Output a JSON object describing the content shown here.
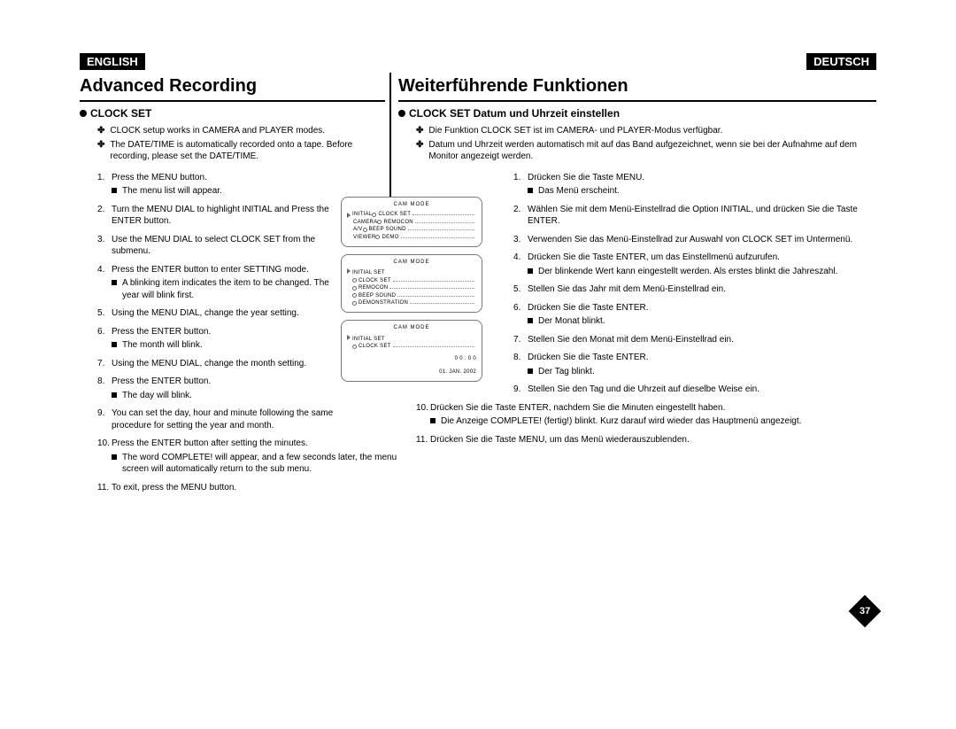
{
  "langs": {
    "left": "ENGLISH",
    "right": "DEUTSCH"
  },
  "left": {
    "title": "Advanced Recording",
    "subhead": "CLOCK SET",
    "intro": [
      "CLOCK setup works in CAMERA and PLAYER modes.",
      "The DATE/TIME is automatically recorded onto a tape. Before recording, please set the DATE/TIME."
    ],
    "steps": [
      {
        "t": "Press the MENU button.",
        "subs": [
          "The menu list will appear."
        ]
      },
      {
        "t": "Turn the MENU DIAL to highlight INITIAL and Press the ENTER button."
      },
      {
        "t": "Use the MENU DIAL to select CLOCK SET from the submenu."
      },
      {
        "t": "Press the ENTER button to enter SETTING mode.",
        "subs": [
          "A blinking item indicates the item to be changed. The year will blink first."
        ]
      },
      {
        "t": "Using the MENU DIAL, change the year setting."
      },
      {
        "t": "Press the ENTER button.",
        "subs": [
          "The month will blink."
        ]
      },
      {
        "t": "Using the MENU DIAL, change the month setting."
      },
      {
        "t": "Press the ENTER button.",
        "subs": [
          "The day will blink."
        ]
      },
      {
        "t": "You can set the day, hour and minute following the same procedure for setting the year and month."
      },
      {
        "t": "Press the ENTER button after setting the minutes.",
        "subs": [
          "The word COMPLETE! will appear, and a few seconds later, the menu screen will automatically return to the sub menu."
        ]
      },
      {
        "t": "To exit, press the MENU button."
      }
    ]
  },
  "right": {
    "title": "Weiterführende Funktionen",
    "subhead": "CLOCK SET Datum und Uhrzeit einstellen",
    "intro": [
      "Die Funktion CLOCK SET ist im CAMERA- und PLAYER-Modus verfügbar.",
      "Datum und Uhrzeit werden automatisch mit auf das Band aufgezeichnet, wenn sie bei der Aufnahme auf dem Monitor angezeigt werden."
    ],
    "steps": [
      {
        "t": "Drücken Sie die Taste MENU.",
        "subs": [
          "Das Menü erscheint."
        ]
      },
      {
        "t": "Wählen Sie mit dem Menü-Einstellrad die Option INITIAL, und drücken Sie die Taste ENTER."
      },
      {
        "t": "Verwenden Sie das Menü-Einstellrad zur Auswahl von CLOCK SET im Untermenü."
      },
      {
        "t": "Drücken Sie die Taste ENTER, um das Einstellmenü aufzurufen.",
        "subs": [
          "Der blinkende Wert kann eingestellt werden. Als erstes blinkt die Jahreszahl."
        ]
      },
      {
        "t": "Stellen Sie das Jahr mit dem Menü-Einstellrad ein."
      },
      {
        "t": "Drücken Sie die Taste ENTER.",
        "subs": [
          "Der Monat blinkt."
        ]
      },
      {
        "t": "Stellen Sie den Monat mit dem Menü-Einstellrad ein."
      },
      {
        "t": "Drücken Sie die Taste ENTER.",
        "subs": [
          "Der Tag blinkt."
        ]
      },
      {
        "t": "Stellen Sie den Tag und die Uhrzeit auf dieselbe Weise ein."
      },
      {
        "t": "Drücken Sie die Taste ENTER, nachdem Sie die Minuten eingestellt haben.",
        "subs": [
          "Die Anzeige COMPLETE! (fertig!) blinkt. Kurz darauf wird wieder das Hauptmenü angezeigt."
        ]
      },
      {
        "t": "Drücken Sie die Taste MENU, um das Menü wiederauszublenden."
      }
    ]
  },
  "diagrams": {
    "d1": {
      "title": "CAM MODE",
      "rows": [
        [
          "INITIAL",
          "CLOCK SET",
          ""
        ],
        [
          "CAMERA",
          "REMOCON",
          ""
        ],
        [
          "A/V",
          "BEEP SOUND",
          ""
        ],
        [
          "VIEWER",
          "DEMO",
          ""
        ]
      ]
    },
    "d2": {
      "title": "CAM MODE",
      "sub": "INITIAL SET",
      "rows": [
        [
          "CLOCK SET",
          ""
        ],
        [
          "REMOCON",
          ""
        ],
        [
          "BEEP SOUND",
          ""
        ],
        [
          "DEMONSTRATION",
          ""
        ]
      ]
    },
    "d3": {
      "title": "CAM MODE",
      "sub": "INITIAL SET",
      "rows": [
        [
          "CLOCK SET",
          ""
        ]
      ],
      "clock": [
        "0 0 : 0 0",
        "01. JAN. 2002"
      ]
    }
  },
  "page_number": "37"
}
